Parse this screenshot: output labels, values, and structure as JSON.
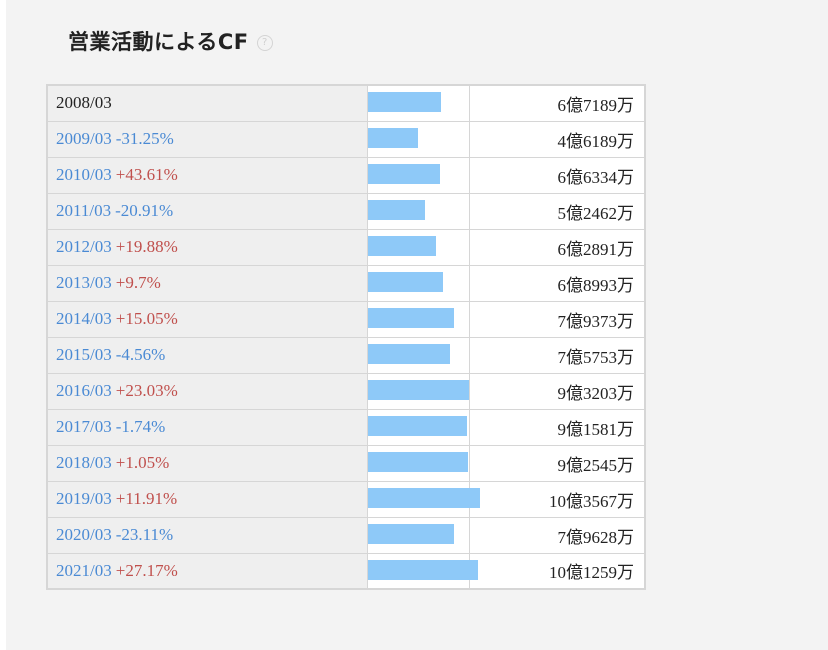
{
  "header": {
    "title": "営業活動によるCF",
    "help_icon": "question-circle-icon",
    "help_glyph": "?"
  },
  "colors": {
    "bar": "#8ec9f8",
    "link": "#4a8ad4",
    "increase": "#c0504d",
    "decrease": "#4a8ad4"
  },
  "chart_data": {
    "type": "bar",
    "unit": "円",
    "categories": [
      "2008/03",
      "2009/03",
      "2010/03",
      "2011/03",
      "2012/03",
      "2013/03",
      "2014/03",
      "2015/03",
      "2016/03",
      "2017/03",
      "2018/03",
      "2019/03",
      "2020/03",
      "2021/03"
    ],
    "values": [
      671890000,
      461890000,
      663340000,
      524620000,
      628910000,
      689930000,
      793730000,
      757530000,
      932030000,
      915810000,
      925450000,
      1035670000,
      796280000,
      1012590000
    ],
    "value_labels": [
      "6億7189万",
      "4億6189万",
      "6億6334万",
      "5億2462万",
      "6億2891万",
      "6億8993万",
      "7億9373万",
      "7億5753万",
      "9億3203万",
      "9億1581万",
      "9億2545万",
      "10億3567万",
      "7億9628万",
      "10億1259万"
    ],
    "changes": [
      "",
      "-31.25%",
      "+43.61%",
      "-20.91%",
      "+19.88%",
      "+9.7%",
      "+15.05%",
      "-4.56%",
      "+23.03%",
      "-1.74%",
      "+1.05%",
      "+11.91%",
      "-23.11%",
      "+27.17%"
    ]
  }
}
